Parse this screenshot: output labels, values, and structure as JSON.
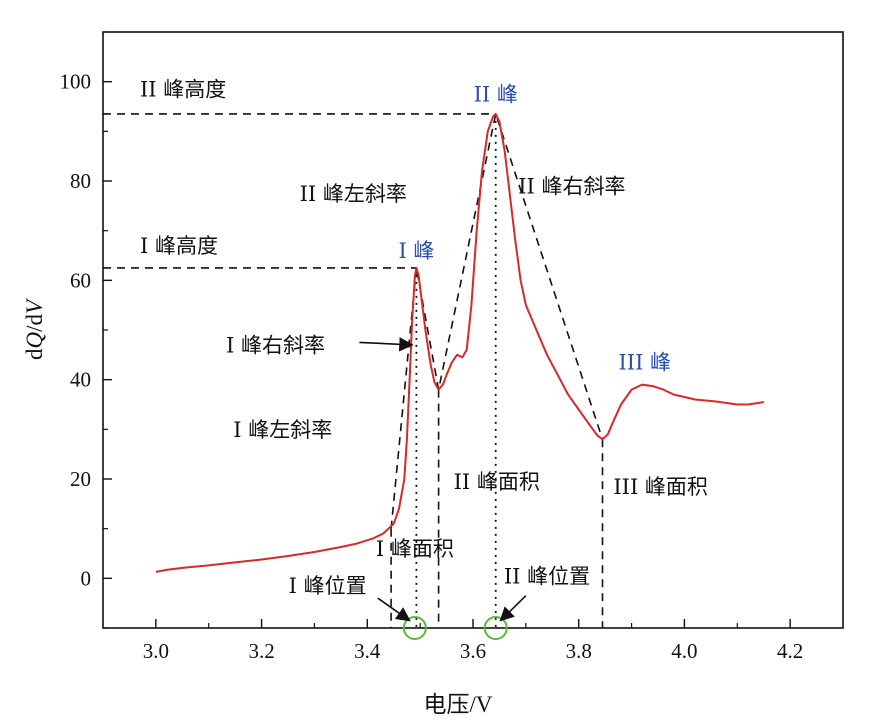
{
  "chart_data": {
    "type": "line",
    "title": "",
    "xlabel": "电压/V",
    "ylabel_parts": [
      "d",
      "Q",
      "/d",
      "V"
    ],
    "xlim": [
      2.9,
      4.3
    ],
    "ylim": [
      -10,
      110
    ],
    "xticks": [
      3.0,
      3.2,
      3.4,
      3.6,
      3.8,
      4.0,
      4.2
    ],
    "xtick_labels": [
      "3.0",
      "3.2",
      "3.4",
      "3.6",
      "3.8",
      "4.0",
      "4.2"
    ],
    "yticks": [
      0,
      20,
      40,
      60,
      80,
      100
    ],
    "ytick_labels": [
      "0",
      "20",
      "40",
      "60",
      "80",
      "100"
    ],
    "grid": false,
    "colors": {
      "curve": "#d42a2a",
      "peak_label": "#2a4ea8",
      "marker": "#5cb83a",
      "guide": "#111111"
    },
    "series": [
      {
        "values": [
          [
            3.0,
            1.3
          ],
          [
            3.02,
            1.7
          ],
          [
            3.05,
            2.1
          ],
          [
            3.1,
            2.6
          ],
          [
            3.15,
            3.2
          ],
          [
            3.2,
            3.8
          ],
          [
            3.25,
            4.5
          ],
          [
            3.3,
            5.3
          ],
          [
            3.35,
            6.3
          ],
          [
            3.38,
            7.0
          ],
          [
            3.41,
            8.0
          ],
          [
            3.43,
            9.0
          ],
          [
            3.44,
            10.0
          ],
          [
            3.45,
            11.0
          ],
          [
            3.46,
            14.0
          ],
          [
            3.47,
            20.0
          ],
          [
            3.475,
            28.0
          ],
          [
            3.48,
            40.0
          ],
          [
            3.485,
            52.0
          ],
          [
            3.49,
            61.0
          ],
          [
            3.493,
            62.5
          ],
          [
            3.497,
            61.0
          ],
          [
            3.503,
            56.0
          ],
          [
            3.51,
            50.0
          ],
          [
            3.52,
            43.0
          ],
          [
            3.527,
            39.5
          ],
          [
            3.535,
            38.0
          ],
          [
            3.543,
            39.0
          ],
          [
            3.55,
            41.0
          ],
          [
            3.56,
            43.5
          ],
          [
            3.57,
            45.0
          ],
          [
            3.58,
            44.5
          ],
          [
            3.588,
            46.0
          ],
          [
            3.597,
            55.0
          ],
          [
            3.607,
            70.0
          ],
          [
            3.617,
            82.0
          ],
          [
            3.628,
            90.0
          ],
          [
            3.638,
            93.0
          ],
          [
            3.643,
            93.5
          ],
          [
            3.65,
            92.0
          ],
          [
            3.66,
            86.0
          ],
          [
            3.67,
            77.0
          ],
          [
            3.68,
            68.0
          ],
          [
            3.69,
            60.0
          ],
          [
            3.7,
            55.0
          ],
          [
            3.72,
            50.0
          ],
          [
            3.74,
            45.0
          ],
          [
            3.76,
            41.0
          ],
          [
            3.78,
            37.0
          ],
          [
            3.8,
            34.0
          ],
          [
            3.82,
            31.0
          ],
          [
            3.835,
            28.8
          ],
          [
            3.845,
            28.0
          ],
          [
            3.855,
            29.0
          ],
          [
            3.865,
            31.5
          ],
          [
            3.88,
            35.0
          ],
          [
            3.9,
            38.0
          ],
          [
            3.92,
            39.0
          ],
          [
            3.94,
            38.7
          ],
          [
            3.96,
            38.0
          ],
          [
            3.98,
            37.0
          ],
          [
            4.0,
            36.5
          ],
          [
            4.02,
            36.0
          ],
          [
            4.04,
            35.8
          ],
          [
            4.06,
            35.6
          ],
          [
            4.08,
            35.3
          ],
          [
            4.1,
            35.0
          ],
          [
            4.12,
            35.0
          ],
          [
            4.14,
            35.3
          ],
          [
            4.15,
            35.5
          ]
        ]
      }
    ],
    "dashed_lines": [
      {
        "x": [
          2.9,
          3.643
        ],
        "y": [
          93.5,
          93.5
        ]
      },
      {
        "x": [
          2.9,
          3.493
        ],
        "y": [
          62.5,
          62.5
        ]
      },
      {
        "x": [
          3.445,
          3.493,
          3.535,
          3.643,
          3.845
        ],
        "y": [
          10.0,
          62.5,
          38.0,
          93.5,
          28.0
        ]
      },
      {
        "x": [
          3.445,
          3.445
        ],
        "y": [
          10.0,
          -10
        ]
      },
      {
        "x": [
          3.535,
          3.535
        ],
        "y": [
          38.0,
          -10
        ]
      },
      {
        "x": [
          3.845,
          3.845
        ],
        "y": [
          28.0,
          -10
        ]
      }
    ],
    "dotted_lines": [
      {
        "x": [
          3.493,
          3.493
        ],
        "y": [
          62.5,
          -10
        ]
      },
      {
        "x": [
          3.643,
          3.643
        ],
        "y": [
          93.5,
          -10
        ]
      }
    ],
    "circle_markers": [
      {
        "x": 3.49,
        "y": -10
      },
      {
        "x": 3.643,
        "y": -10
      }
    ],
    "annotations": {
      "peak2_height": "II 峰高度",
      "peak1_height": "I 峰高度",
      "peak2_label": "II 峰",
      "peak1_label": "I 峰",
      "peak3_label": "III 峰",
      "peak2_left_slope": "II 峰左斜率",
      "peak2_right_slope": "II 峰右斜率",
      "peak1_right_slope": "I 峰右斜率",
      "peak1_left_slope": "I 峰左斜率",
      "peak2_area": "II 峰面积",
      "peak3_area": "III 峰面积",
      "peak1_area": "I 峰面积",
      "peak1_position": "I 峰位置",
      "peak2_position": "II 峰位置"
    },
    "annotation_points": {
      "peak2_height": [
        2.97,
        97.0
      ],
      "peak1_height": [
        2.97,
        65.5
      ],
      "peak2_label": [
        3.643,
        96.0
      ],
      "peak1_label": [
        3.493,
        64.5
      ],
      "peak3_label": [
        3.925,
        42.0
      ],
      "peak2_left_slope": [
        3.475,
        76.0
      ],
      "peak2_right_slope": [
        3.787,
        77.5
      ],
      "peak1_right_slope": [
        3.32,
        45.5
      ],
      "peak1_left_slope": [
        3.24,
        28.5
      ],
      "peak2_area": [
        3.645,
        18.0
      ],
      "peak3_area": [
        3.955,
        17.0
      ],
      "peak1_area": [
        3.49,
        4.5
      ],
      "peak1_position": [
        3.325,
        -3.0
      ],
      "peak2_position": [
        3.74,
        -1.0
      ]
    },
    "arrows": [
      {
        "from": [
          3.385,
          47.5
        ],
        "to": [
          3.485,
          47.0
        ]
      },
      {
        "from": [
          3.42,
          -4.0
        ],
        "to": [
          3.48,
          -8.5
        ]
      },
      {
        "from": [
          3.7,
          -3.5
        ],
        "to": [
          3.652,
          -8.5
        ]
      }
    ]
  }
}
